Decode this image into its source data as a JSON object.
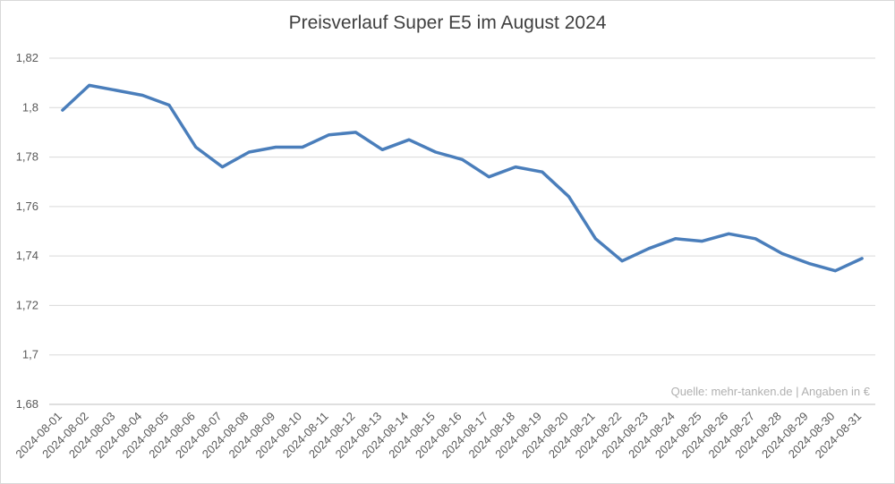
{
  "chart_data": {
    "type": "line",
    "title": "Preisverlauf Super E5 im August 2024",
    "xlabel": "",
    "ylabel": "",
    "ylim": [
      1.68,
      1.82
    ],
    "yticks": [
      "1,68",
      "1,7",
      "1,72",
      "1,74",
      "1,76",
      "1,78",
      "1,8",
      "1,82"
    ],
    "ytick_values": [
      1.68,
      1.7,
      1.72,
      1.74,
      1.76,
      1.78,
      1.8,
      1.82
    ],
    "grid": true,
    "legend": "none",
    "line_color": "#4a7ebb",
    "categories": [
      "2024-08-01",
      "2024-08-02",
      "2024-08-03",
      "2024-08-04",
      "2024-08-05",
      "2024-08-06",
      "2024-08-07",
      "2024-08-08",
      "2024-08-09",
      "2024-08-10",
      "2024-08-11",
      "2024-08-12",
      "2024-08-13",
      "2024-08-14",
      "2024-08-15",
      "2024-08-16",
      "2024-08-17",
      "2024-08-18",
      "2024-08-19",
      "2024-08-20",
      "2024-08-21",
      "2024-08-22",
      "2024-08-23",
      "2024-08-24",
      "2024-08-25",
      "2024-08-26",
      "2024-08-27",
      "2024-08-28",
      "2024-08-29",
      "2024-08-30",
      "2024-08-31"
    ],
    "series": [
      {
        "values": [
          1.799,
          1.809,
          1.807,
          1.805,
          1.801,
          1.784,
          1.776,
          1.782,
          1.784,
          1.784,
          1.789,
          1.79,
          1.783,
          1.787,
          1.782,
          1.779,
          1.772,
          1.776,
          1.774,
          1.764,
          1.747,
          1.738,
          1.743,
          1.747,
          1.746,
          1.749,
          1.747,
          1.741,
          1.737,
          1.734,
          1.739
        ]
      }
    ],
    "annotation": "Quelle: mehr-tanken.de | Angaben in €"
  }
}
